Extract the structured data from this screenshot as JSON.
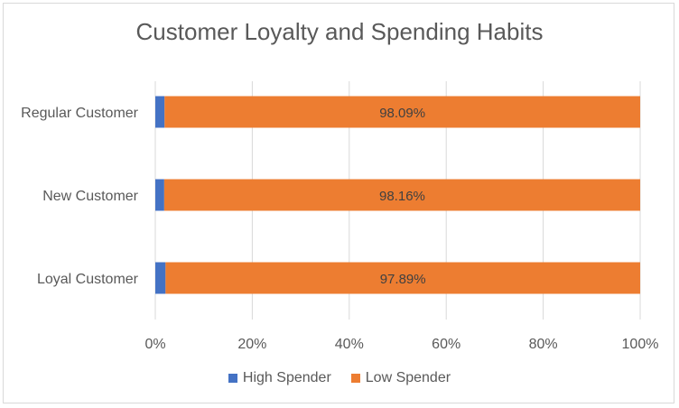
{
  "chart_data": {
    "type": "bar",
    "orientation": "horizontal",
    "stacked": "percent",
    "title": "Customer Loyalty and Spending Habits",
    "categories": [
      "Regular Customer",
      "New Customer",
      "Loyal Customer"
    ],
    "series": [
      {
        "name": "High Spender",
        "color": "#4472c4",
        "values": [
          1.91,
          1.84,
          2.11
        ]
      },
      {
        "name": "Low Spender",
        "color": "#ed7d31",
        "values": [
          98.09,
          98.16,
          97.89
        ],
        "data_labels": [
          "98.09%",
          "98.16%",
          "97.89%"
        ]
      }
    ],
    "xlim": [
      0,
      100
    ],
    "x_ticks": [
      "0%",
      "20%",
      "40%",
      "60%",
      "80%",
      "100%"
    ],
    "grid": "vertical",
    "legend_position": "bottom"
  }
}
